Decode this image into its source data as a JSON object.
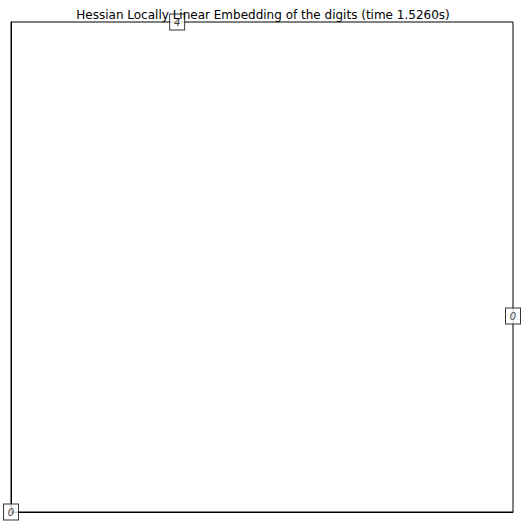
{
  "chart_data": {
    "type": "scatter",
    "title": "Hessian Locally Linear Embedding of the digits (time 1.5260s)",
    "x": [
      0.331,
      1.0,
      0.0
    ],
    "values": [
      1.0,
      0.4,
      0.0
    ],
    "point_labels": [
      "4",
      "0",
      "0"
    ],
    "color": "#000000",
    "marker": "square",
    "xlim": [
      0,
      1
    ],
    "ylim": [
      0,
      1
    ],
    "xticks": [],
    "yticks": [],
    "grid": false,
    "tick_labels": false
  }
}
